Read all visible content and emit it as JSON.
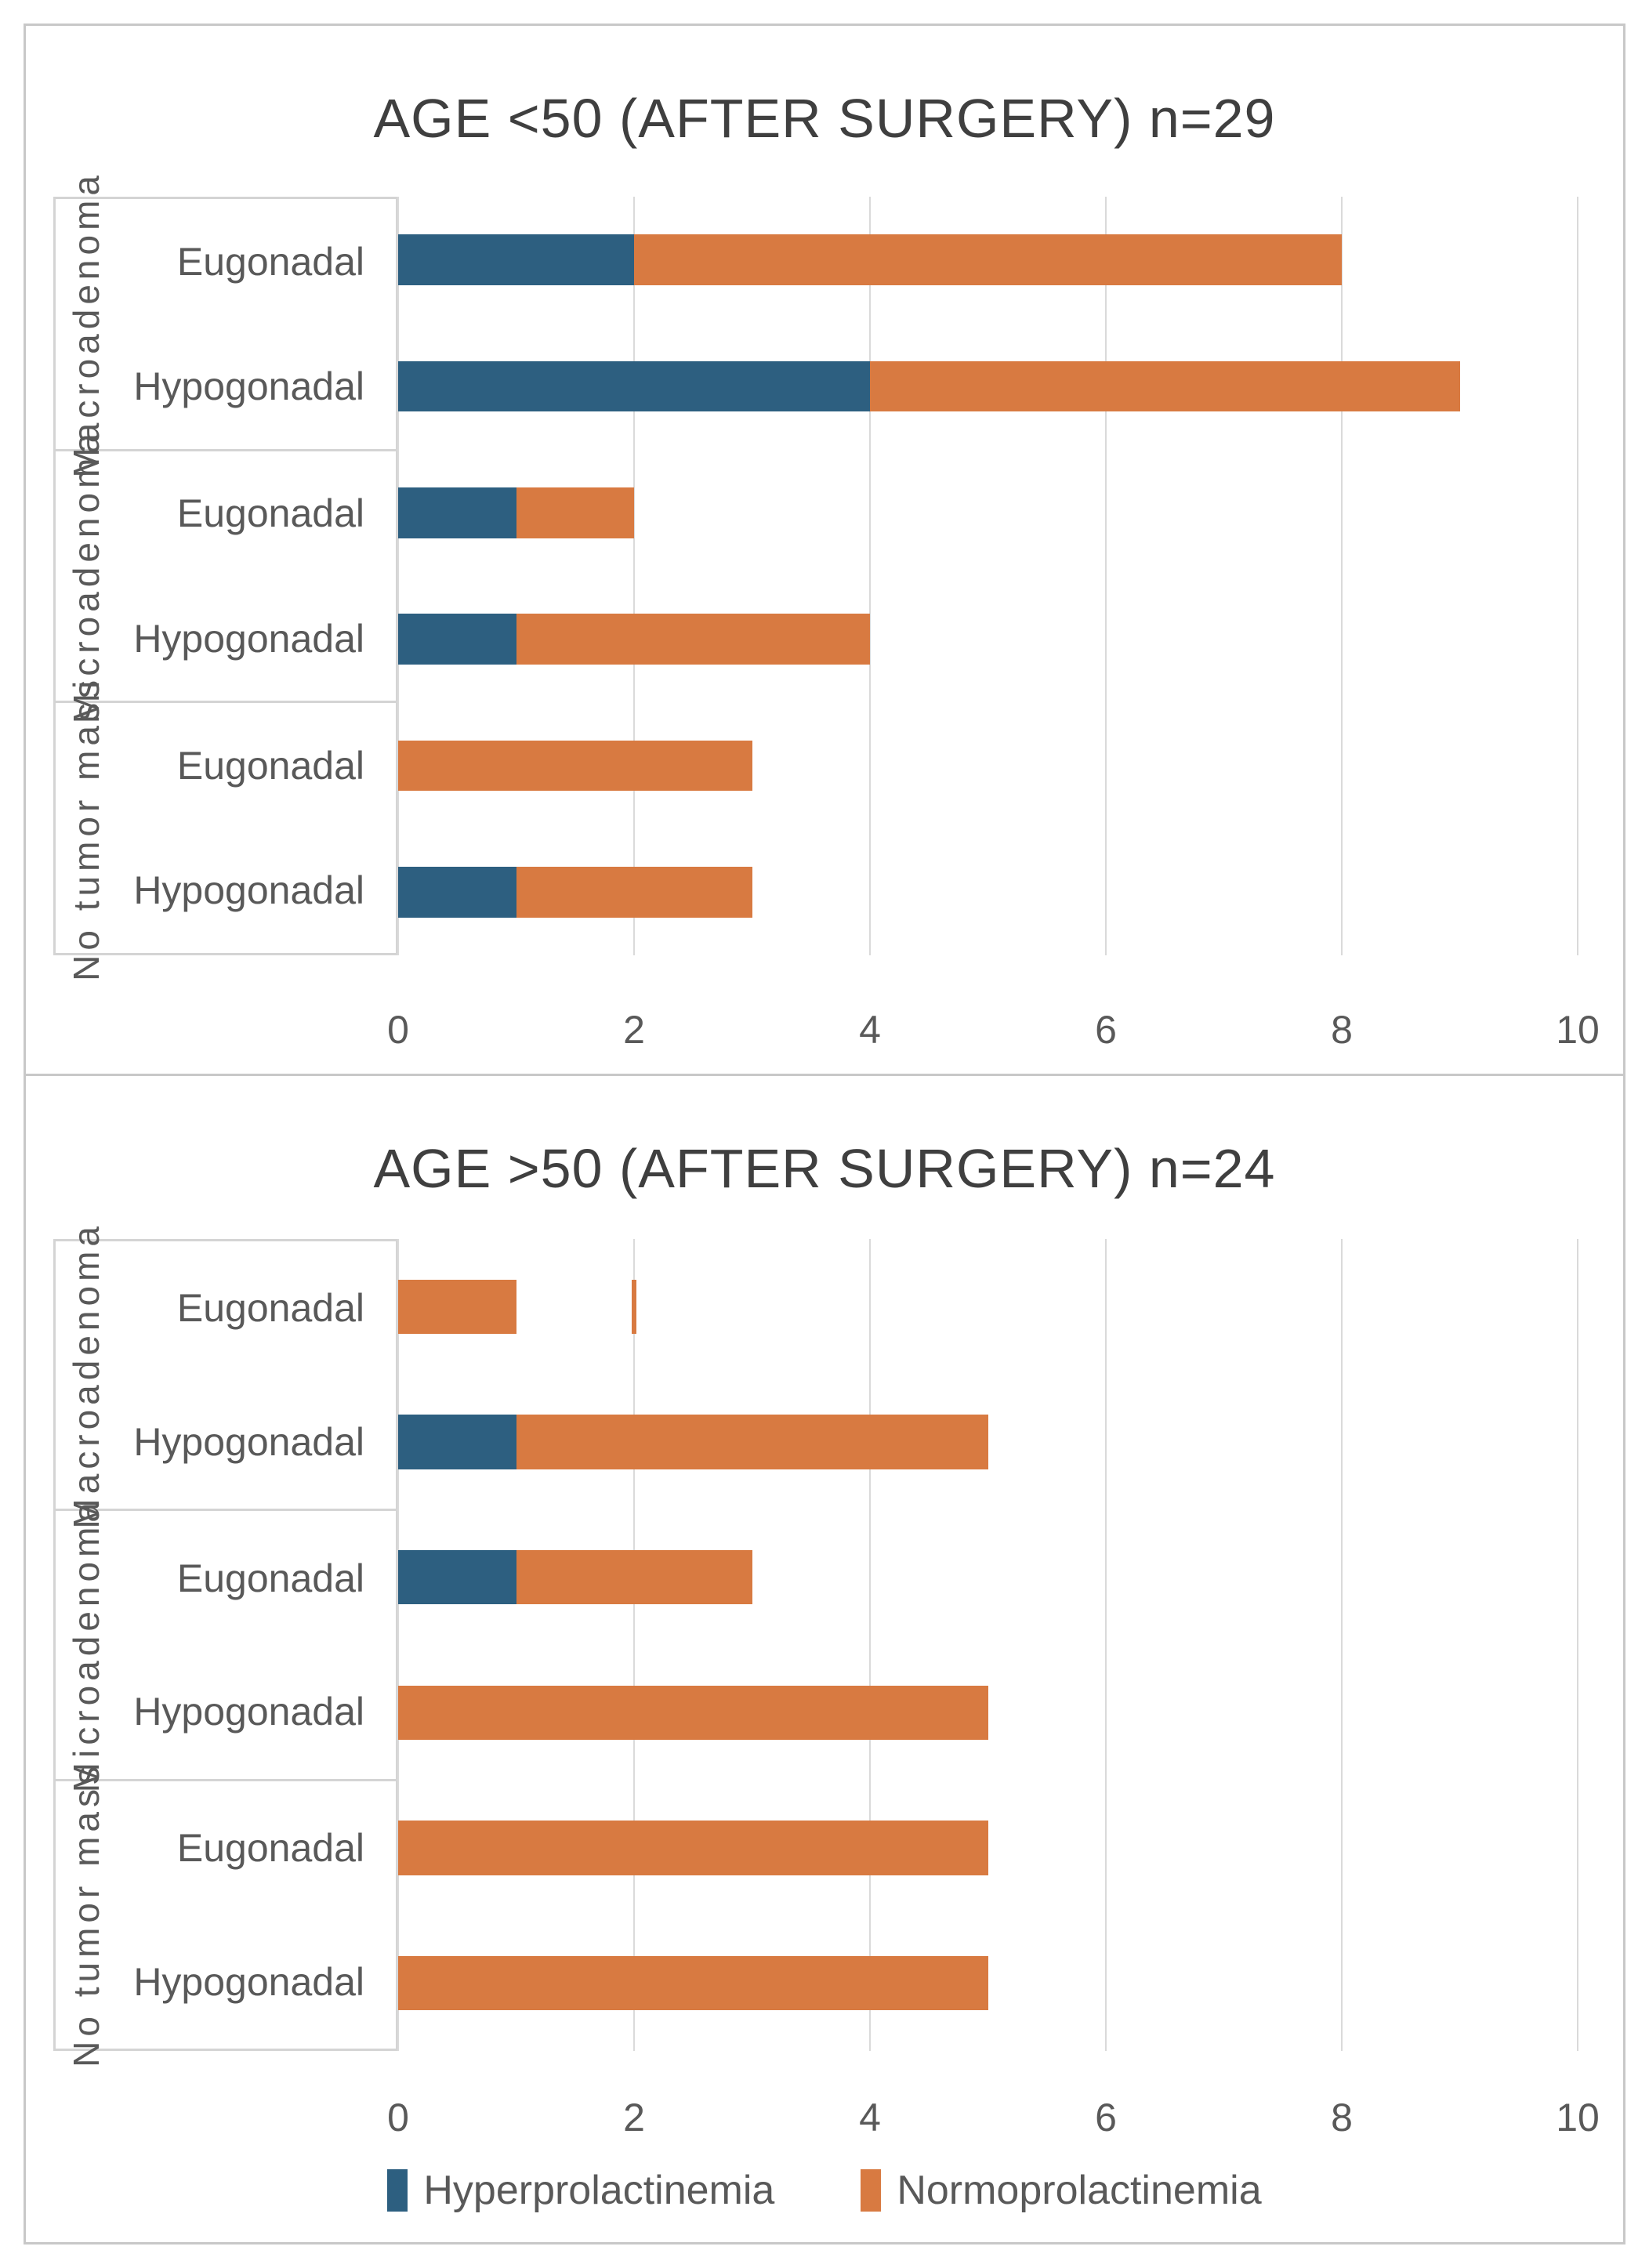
{
  "colors": {
    "hyper": "#2d5f80",
    "normo": "#d87a41",
    "grid": "#dadada",
    "box_border": "#d4d4d4",
    "frame_border": "#c8c8c8",
    "text": "#595959",
    "title_text": "#3f3f3f"
  },
  "legend": {
    "items": [
      {
        "label": "Hyperprolactinemia",
        "series": "hyper"
      },
      {
        "label": "Normoprolactinemia",
        "series": "normo"
      }
    ]
  },
  "chart_data": [
    {
      "type": "bar",
      "orientation": "horizontal",
      "stacked": true,
      "title": "AGE <50 (AFTER SURGERY) n=29",
      "n": 29,
      "series_names": [
        "Hyperprolactinemia",
        "Normoprolactinemia"
      ],
      "xlim": [
        0,
        10
      ],
      "xticks": [
        0,
        2,
        4,
        6,
        8,
        10
      ],
      "grid": "vertical",
      "legend_position": "none",
      "groups": [
        {
          "label": "Macroadenoma",
          "rows": [
            {
              "label": "Eugonadal",
              "values": {
                "hyper": 2,
                "normo": 6
              }
            },
            {
              "label": "Hypogonadal",
              "values": {
                "hyper": 4,
                "normo": 5
              }
            }
          ]
        },
        {
          "label": "Microadenoma",
          "rows": [
            {
              "label": "Eugonadal",
              "values": {
                "hyper": 1,
                "normo": 1
              }
            },
            {
              "label": "Hypogonadal",
              "values": {
                "hyper": 1,
                "normo": 3
              }
            }
          ]
        },
        {
          "label": "No tumor mass",
          "rows": [
            {
              "label": "Eugonadal",
              "values": {
                "hyper": 0,
                "normo": 3
              }
            },
            {
              "label": "Hypogonadal",
              "values": {
                "hyper": 1,
                "normo": 2
              }
            }
          ]
        }
      ]
    },
    {
      "type": "bar",
      "orientation": "horizontal",
      "stacked": true,
      "title": "AGE >50 (AFTER SURGERY) n=24",
      "n": 24,
      "series_names": [
        "Hyperprolactinemia",
        "Normoprolactinemia"
      ],
      "xlim": [
        0,
        10
      ],
      "xticks": [
        0,
        2,
        4,
        6,
        8,
        10
      ],
      "grid": "vertical",
      "legend_position": "bottom",
      "groups": [
        {
          "label": "Macroadenoma",
          "rows": [
            {
              "label": "Eugonadal",
              "values": {
                "hyper": 0,
                "normo": 1
              },
              "stray_mark_x": 2
            },
            {
              "label": "Hypogonadal",
              "values": {
                "hyper": 1,
                "normo": 4
              }
            }
          ]
        },
        {
          "label": "Microadenoma",
          "rows": [
            {
              "label": "Eugonadal",
              "values": {
                "hyper": 1,
                "normo": 2
              }
            },
            {
              "label": "Hypogonadal",
              "values": {
                "hyper": 0,
                "normo": 5
              }
            }
          ]
        },
        {
          "label": "No tumor mass",
          "rows": [
            {
              "label": "Eugonadal",
              "values": {
                "hyper": 0,
                "normo": 5
              }
            },
            {
              "label": "Hypogonadal",
              "values": {
                "hyper": 0,
                "normo": 5
              }
            }
          ]
        }
      ]
    }
  ]
}
